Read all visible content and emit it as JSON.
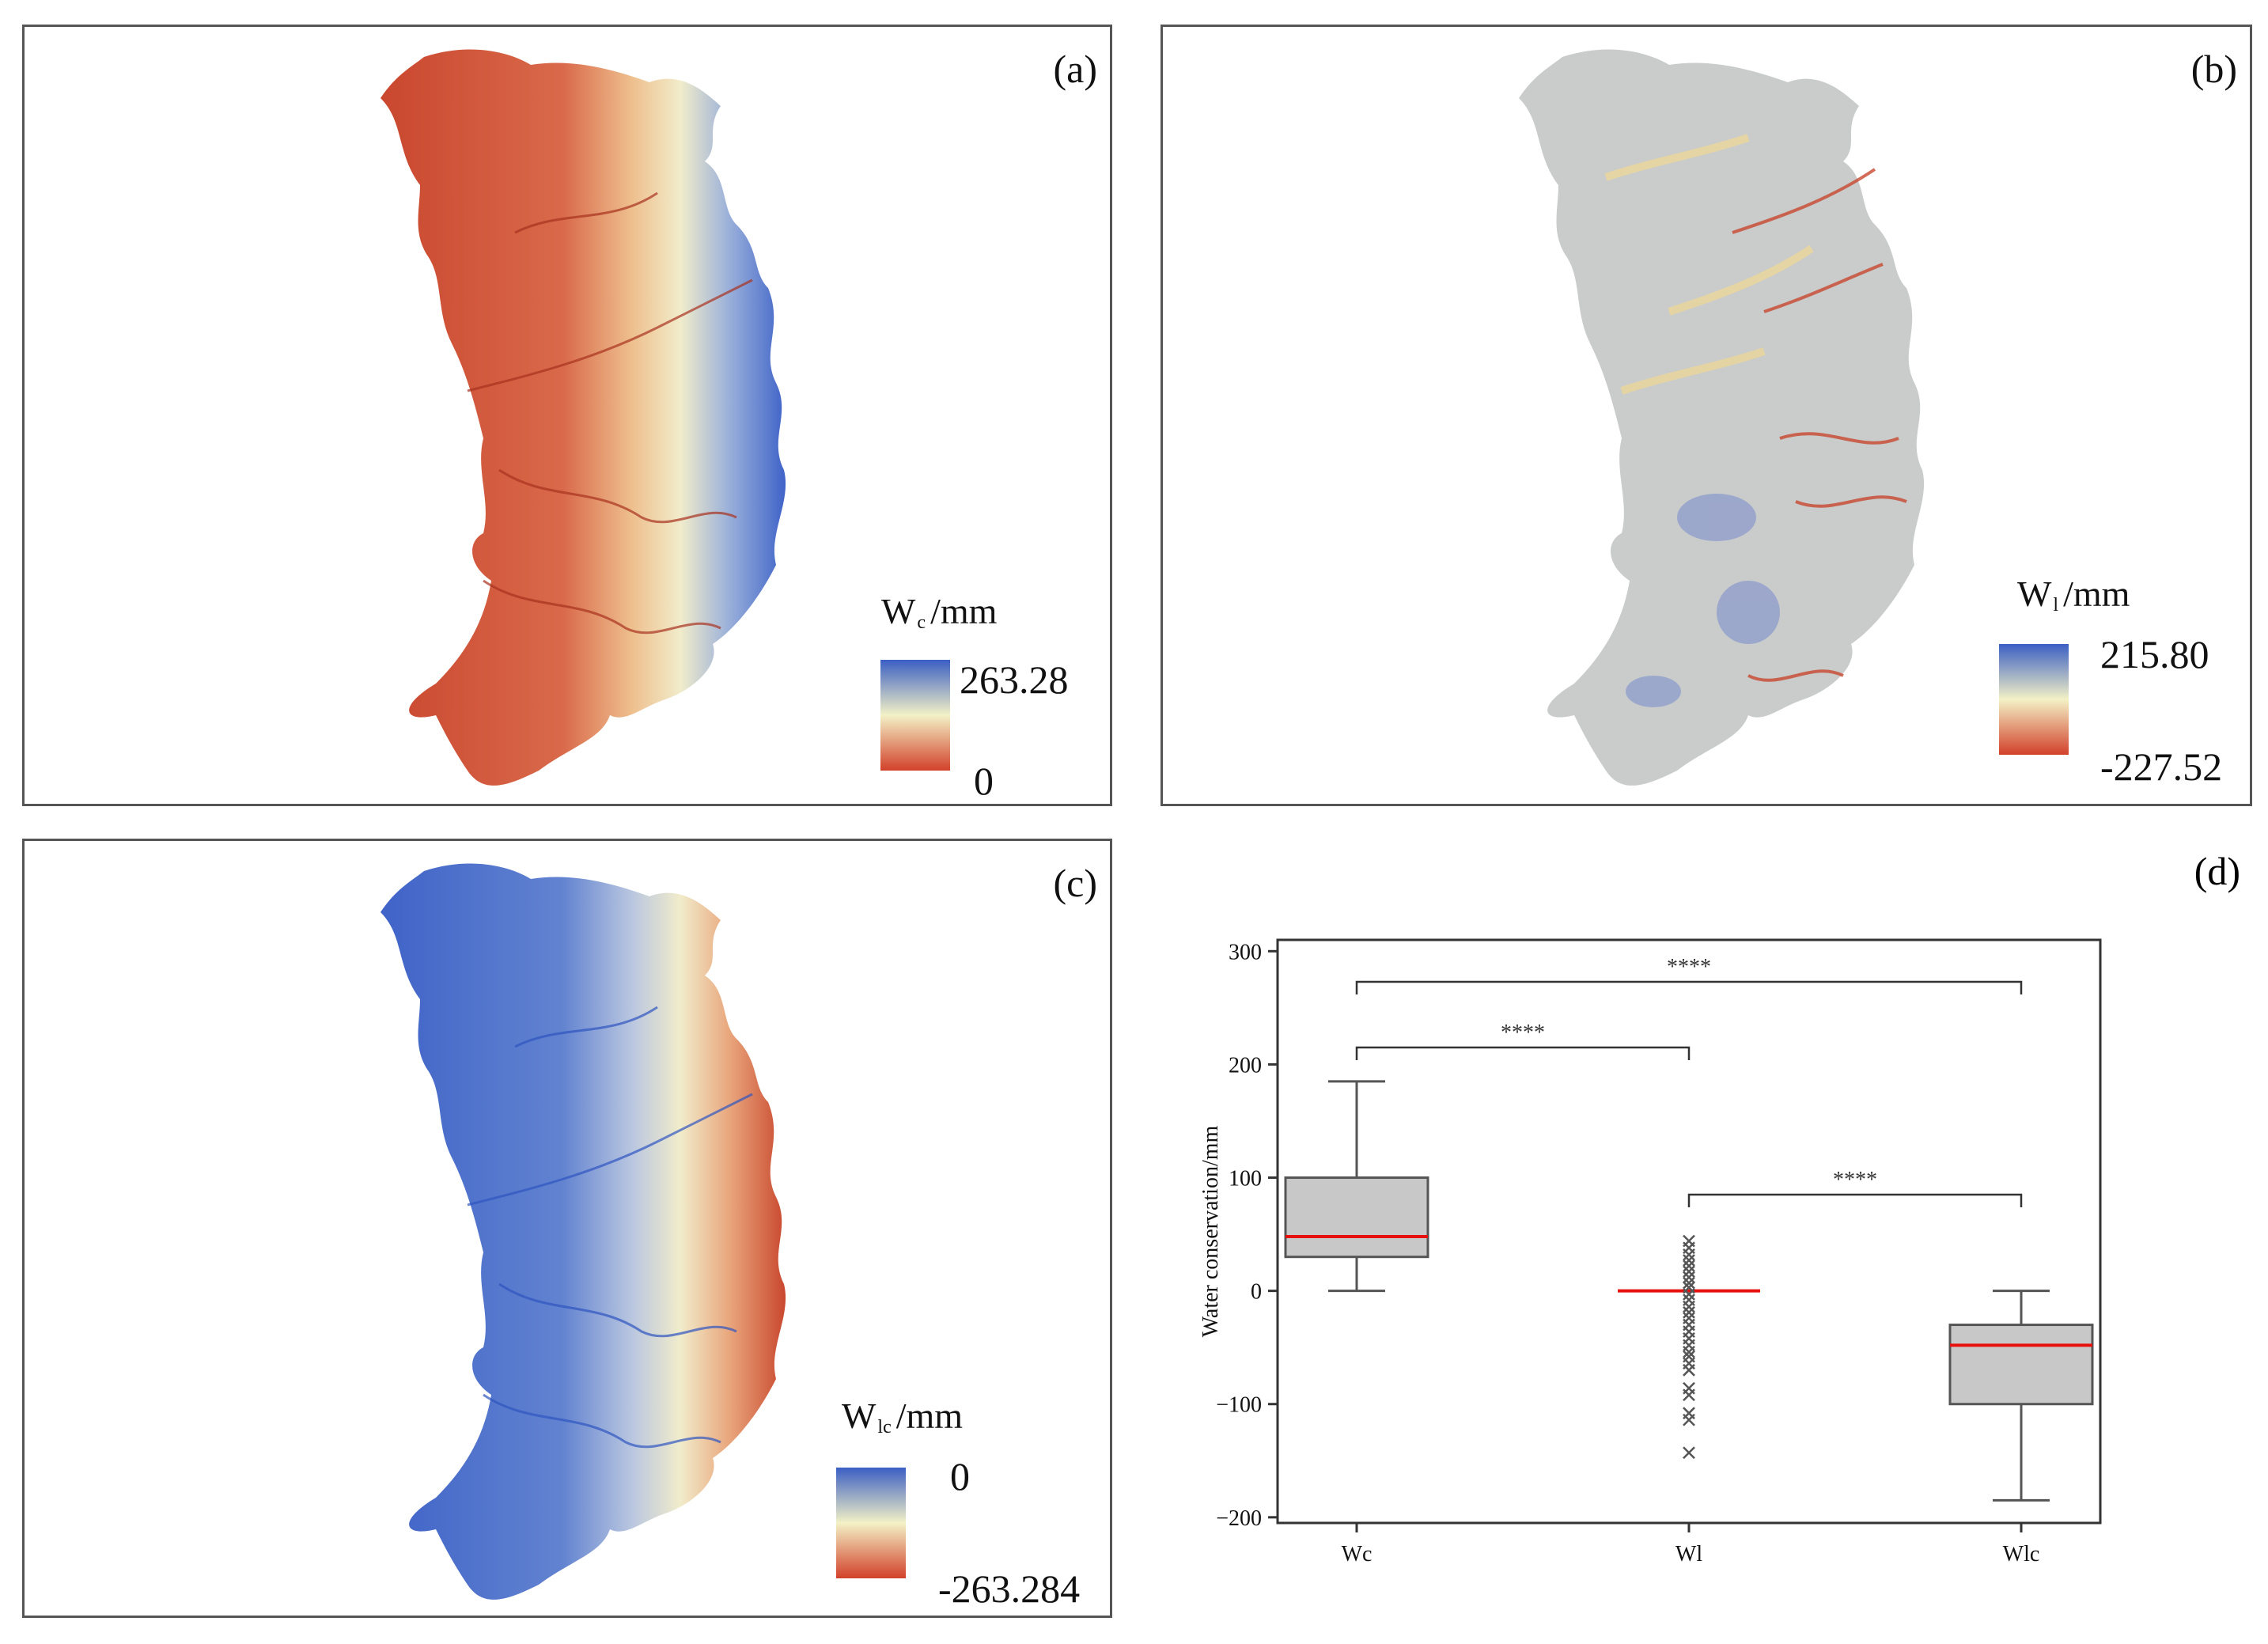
{
  "panels": {
    "a": {
      "label": "(a)",
      "legend": {
        "symbol": "W",
        "sub": "c",
        "unit": "/mm",
        "max": "263.28",
        "min": "0"
      },
      "colors": {
        "high": "#3b5fc4",
        "mid": "#f3f1c6",
        "low": "#d2412a"
      }
    },
    "b": {
      "label": "(b)",
      "legend": {
        "symbol": "W",
        "sub": "l",
        "unit": "/mm",
        "max": "215.80",
        "min": "-227.52"
      },
      "colors": {
        "high": "#3b5fc4",
        "mid": "#f3f1c6",
        "low": "#d2412a",
        "base": "#c9cccb"
      }
    },
    "c": {
      "label": "(c)",
      "legend": {
        "symbol": "W",
        "sub": "lc",
        "unit": "/mm",
        "max": "0",
        "min": "-263.284"
      },
      "colors": {
        "high": "#3b5fc4",
        "mid": "#f3f1c6",
        "low": "#d2412a"
      }
    }
  },
  "chart_data": {
    "type": "box",
    "panel_label": "(d)",
    "ylabel": "Water conservation/mm",
    "ylim": [
      -205,
      310
    ],
    "yticks": [
      300,
      200,
      100,
      0,
      -100,
      -200
    ],
    "ytick_labels": [
      "300",
      "200",
      "100",
      "0",
      "−100",
      "−200"
    ],
    "categories": [
      "Wc",
      "Wl",
      "Wlc"
    ],
    "boxes": [
      {
        "name": "Wc",
        "whisker_low": 0,
        "q1": 30,
        "median": 48,
        "q3": 100,
        "whisker_high": 185,
        "outliers": []
      },
      {
        "name": "Wl",
        "whisker_low": 0,
        "q1": 0,
        "median": 0,
        "q3": 0,
        "whisker_high": 0,
        "outliers": [
          44,
          38,
          32,
          27,
          22,
          17,
          12,
          7,
          3,
          -3,
          -8,
          -14,
          -19,
          -24,
          -30,
          -36,
          -42,
          -48,
          -54,
          -58,
          -64,
          -70,
          -86,
          -92,
          -108,
          -114,
          -143
        ]
      },
      {
        "name": "Wlc",
        "whisker_low": -185,
        "q1": -100,
        "median": -48,
        "q3": -30,
        "whisker_high": 0,
        "outliers": []
      }
    ],
    "significance": [
      {
        "from": "Wc",
        "to": "Wlc",
        "level": 273,
        "label": "****"
      },
      {
        "from": "Wc",
        "to": "Wl",
        "level": 215,
        "label": "****"
      },
      {
        "from": "Wl",
        "to": "Wlc",
        "level": 85,
        "label": "****"
      }
    ],
    "colors": {
      "box": "#c8c8c8",
      "edge": "#555555",
      "median": "#e8100c",
      "outlier": "#555555"
    }
  }
}
